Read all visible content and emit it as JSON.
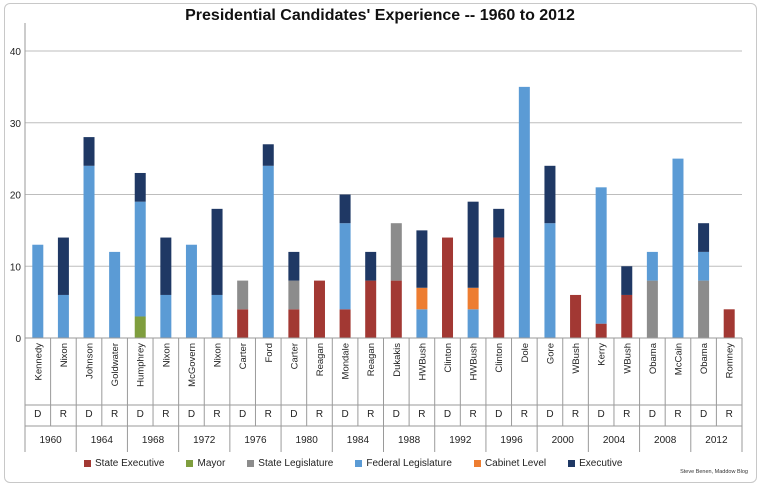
{
  "chart_data": {
    "type": "bar",
    "stacked": true,
    "title": "Presidential Candidates' Experience -- 1960 to 2012",
    "ylim": [
      0,
      40
    ],
    "yticks": [
      0,
      10,
      20,
      30,
      40
    ],
    "grid": true,
    "legend_position": "bottom",
    "credit": "Steve Benen, Maddow Blog",
    "series": [
      {
        "name": "State Executive",
        "color": "#a23833"
      },
      {
        "name": "Mayor",
        "color": "#7f9e3e"
      },
      {
        "name": "State Legislature",
        "color": "#8c8c8c"
      },
      {
        "name": "Federal Legislature",
        "color": "#5b9bd5"
      },
      {
        "name": "Cabinet Level",
        "color": "#ed7d31"
      },
      {
        "name": "Executive",
        "color": "#1f3864"
      }
    ],
    "candidates": [
      {
        "name": "Kennedy",
        "party": "D",
        "year": "1960",
        "values": [
          0,
          0,
          0,
          13,
          0,
          0
        ]
      },
      {
        "name": "Nixon",
        "party": "R",
        "year": "1960",
        "values": [
          0,
          0,
          0,
          6,
          0,
          8
        ]
      },
      {
        "name": "Johnson",
        "party": "D",
        "year": "1964",
        "values": [
          0,
          0,
          0,
          24,
          0,
          4
        ]
      },
      {
        "name": "Goldwater",
        "party": "R",
        "year": "1964",
        "values": [
          0,
          0,
          0,
          12,
          0,
          0
        ]
      },
      {
        "name": "Humphrey",
        "party": "D",
        "year": "1968",
        "values": [
          0,
          3,
          0,
          16,
          0,
          4
        ]
      },
      {
        "name": "Nixon",
        "party": "R",
        "year": "1968",
        "values": [
          0,
          0,
          0,
          6,
          0,
          8
        ]
      },
      {
        "name": "McGovern",
        "party": "D",
        "year": "1972",
        "values": [
          0,
          0,
          0,
          13,
          0,
          0
        ]
      },
      {
        "name": "Nixon",
        "party": "R",
        "year": "1972",
        "values": [
          0,
          0,
          0,
          6,
          0,
          12
        ]
      },
      {
        "name": "Carter",
        "party": "D",
        "year": "1976",
        "values": [
          4,
          0,
          4,
          0,
          0,
          0
        ]
      },
      {
        "name": "Ford",
        "party": "R",
        "year": "1976",
        "values": [
          0,
          0,
          0,
          24,
          0,
          3
        ]
      },
      {
        "name": "Carter",
        "party": "D",
        "year": "1980",
        "values": [
          4,
          0,
          4,
          0,
          0,
          4
        ]
      },
      {
        "name": "Reagan",
        "party": "R",
        "year": "1980",
        "values": [
          8,
          0,
          0,
          0,
          0,
          0
        ]
      },
      {
        "name": "Mondale",
        "party": "D",
        "year": "1984",
        "values": [
          4,
          0,
          0,
          12,
          0,
          4
        ]
      },
      {
        "name": "Reagan",
        "party": "R",
        "year": "1984",
        "values": [
          8,
          0,
          0,
          0,
          0,
          4
        ]
      },
      {
        "name": "Dukakis",
        "party": "D",
        "year": "1988",
        "values": [
          8,
          0,
          8,
          0,
          0,
          0
        ]
      },
      {
        "name": "HWBush",
        "party": "R",
        "year": "1988",
        "values": [
          0,
          0,
          0,
          4,
          3,
          8
        ]
      },
      {
        "name": "Clinton",
        "party": "D",
        "year": "1992",
        "values": [
          14,
          0,
          0,
          0,
          0,
          0
        ]
      },
      {
        "name": "HWBush",
        "party": "R",
        "year": "1992",
        "values": [
          0,
          0,
          0,
          4,
          3,
          12
        ]
      },
      {
        "name": "Clinton",
        "party": "D",
        "year": "1996",
        "values": [
          14,
          0,
          0,
          0,
          0,
          4
        ]
      },
      {
        "name": "Dole",
        "party": "R",
        "year": "1996",
        "values": [
          0,
          0,
          0,
          35,
          0,
          0
        ]
      },
      {
        "name": "Gore",
        "party": "D",
        "year": "2000",
        "values": [
          0,
          0,
          0,
          16,
          0,
          8
        ]
      },
      {
        "name": "WBush",
        "party": "R",
        "year": "2000",
        "values": [
          6,
          0,
          0,
          0,
          0,
          0
        ]
      },
      {
        "name": "Kerry",
        "party": "D",
        "year": "2004",
        "values": [
          2,
          0,
          0,
          19,
          0,
          0
        ]
      },
      {
        "name": "WBush",
        "party": "R",
        "year": "2004",
        "values": [
          6,
          0,
          0,
          0,
          0,
          4
        ]
      },
      {
        "name": "Obama",
        "party": "D",
        "year": "2008",
        "values": [
          0,
          0,
          8,
          4,
          0,
          0
        ]
      },
      {
        "name": "McCain",
        "party": "R",
        "year": "2008",
        "values": [
          0,
          0,
          0,
          25,
          0,
          0
        ]
      },
      {
        "name": "Obama",
        "party": "D",
        "year": "2012",
        "values": [
          0,
          0,
          8,
          4,
          0,
          4
        ]
      },
      {
        "name": "Romney",
        "party": "R",
        "year": "2012",
        "values": [
          4,
          0,
          0,
          0,
          0,
          0
        ]
      }
    ]
  }
}
